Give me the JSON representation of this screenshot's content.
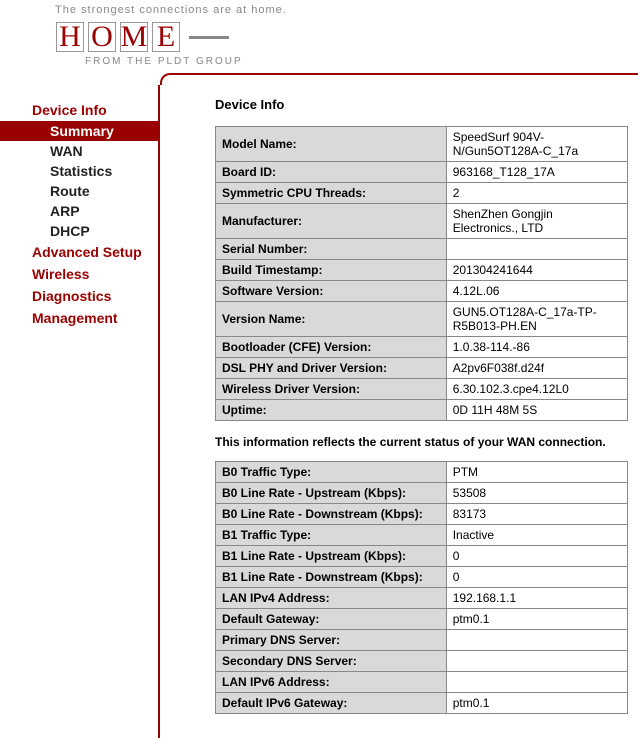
{
  "header": {
    "tagline": "The strongest connections are at home.",
    "logo_letters": [
      "H",
      "O",
      "M",
      "E"
    ],
    "subtitle": "FROM THE PLDT GROUP"
  },
  "sidebar": {
    "sections": [
      {
        "label": "Device Info",
        "items": [
          {
            "label": "Summary",
            "active": true
          },
          {
            "label": "WAN"
          },
          {
            "label": "Statistics"
          },
          {
            "label": "Route"
          },
          {
            "label": "ARP"
          },
          {
            "label": "DHCP"
          }
        ]
      },
      {
        "label": "Advanced Setup",
        "items": []
      },
      {
        "label": "Wireless",
        "items": []
      },
      {
        "label": "Diagnostics",
        "items": []
      },
      {
        "label": "Management",
        "items": []
      }
    ]
  },
  "content": {
    "page_title": "Device Info",
    "device_rows": [
      {
        "label": "Model Name:",
        "value": "SpeedSurf 904V-N/Gun5OT128A-C_17a"
      },
      {
        "label": "Board ID:",
        "value": "963168_T128_17A"
      },
      {
        "label": "Symmetric CPU Threads:",
        "value": "2"
      },
      {
        "label": "Manufacturer:",
        "value": "ShenZhen Gongjin Electronics., LTD"
      },
      {
        "label": "Serial Number:",
        "value": ""
      },
      {
        "label": "Build Timestamp:",
        "value": "201304241644"
      },
      {
        "label": "Software Version:",
        "value": "4.12L.06"
      },
      {
        "label": "Version Name:",
        "value": "GUN5.OT128A-C_17a-TP-R5B013-PH.EN"
      },
      {
        "label": "Bootloader (CFE) Version:",
        "value": "1.0.38-114.-86"
      },
      {
        "label": "DSL PHY and Driver Version:",
        "value": "A2pv6F038f.d24f"
      },
      {
        "label": "Wireless Driver Version:",
        "value": "6.30.102.3.cpe4.12L0"
      },
      {
        "label": "Uptime:",
        "value": "0D 11H 48M 5S"
      }
    ],
    "wan_note": "This information reflects the current status of your WAN connection.",
    "wan_rows": [
      {
        "label": "B0 Traffic Type:",
        "value": "PTM"
      },
      {
        "label": "B0 Line Rate - Upstream (Kbps):",
        "value": "53508"
      },
      {
        "label": "B0 Line Rate - Downstream (Kbps):",
        "value": "83173"
      },
      {
        "label": "B1 Traffic Type:",
        "value": "Inactive"
      },
      {
        "label": "B1 Line Rate - Upstream (Kbps):",
        "value": "0"
      },
      {
        "label": "B1 Line Rate - Downstream (Kbps):",
        "value": "0"
      },
      {
        "label": "LAN IPv4 Address:",
        "value": "192.168.1.1"
      },
      {
        "label": "Default Gateway:",
        "value": "ptm0.1"
      },
      {
        "label": "Primary DNS Server:",
        "value": ""
      },
      {
        "label": "Secondary DNS Server:",
        "value": ""
      },
      {
        "label": "LAN IPv6 Address:",
        "value": ""
      },
      {
        "label": "Default IPv6 Gateway:",
        "value": "ptm0.1"
      }
    ]
  }
}
